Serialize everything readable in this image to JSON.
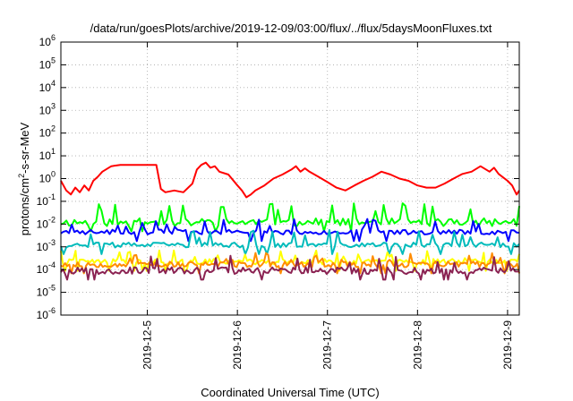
{
  "chart_data": {
    "type": "line",
    "title": "/data/run/goesPlots/archive/2019-12-09/03:00/flux/../flux/5daysMoonFluxes.txt",
    "xlabel": "Coordinated Universal Time (UTC)",
    "ylabel_main": "protons/cm",
    "ylabel_sup": "2",
    "ylabel_rest": "-s-sr-MeV",
    "y_scale": "log",
    "ylim_exp": [
      -6,
      6
    ],
    "xlim_days": [
      4.04,
      9.13
    ],
    "y_ticks": [
      {
        "exp": -6,
        "base": "10",
        "sup": "-6"
      },
      {
        "exp": -5,
        "base": "10",
        "sup": "-5"
      },
      {
        "exp": -4,
        "base": "10",
        "sup": "-4"
      },
      {
        "exp": -3,
        "base": "10",
        "sup": "-3"
      },
      {
        "exp": -2,
        "base": "10",
        "sup": "-2"
      },
      {
        "exp": -1,
        "base": "10",
        "sup": "-1"
      },
      {
        "exp": 0,
        "base": "10",
        "sup": "0"
      },
      {
        "exp": 1,
        "base": "10",
        "sup": "1"
      },
      {
        "exp": 2,
        "base": "10",
        "sup": "2"
      },
      {
        "exp": 3,
        "base": "10",
        "sup": "3"
      },
      {
        "exp": 4,
        "base": "10",
        "sup": "4"
      },
      {
        "exp": 5,
        "base": "10",
        "sup": "5"
      },
      {
        "exp": 6,
        "base": "10",
        "sup": "6"
      }
    ],
    "x_ticks": [
      {
        "day": 5,
        "label": "2019-12-5"
      },
      {
        "day": 6,
        "label": "2019-12-6"
      },
      {
        "day": 7,
        "label": "2019-12-7"
      },
      {
        "day": 8,
        "label": "2019-12-8"
      },
      {
        "day": 9,
        "label": "2019-12-9"
      }
    ],
    "grid": true,
    "series": [
      {
        "color": "#ff0000",
        "x": [
          4.04,
          4.1,
          4.15,
          4.2,
          4.25,
          4.3,
          4.35,
          4.4,
          4.45,
          4.5,
          4.6,
          4.7,
          4.8,
          4.9,
          5.0,
          5.05,
          5.1,
          5.15,
          5.2,
          5.3,
          5.4,
          5.5,
          5.55,
          5.6,
          5.65,
          5.7,
          5.75,
          5.8,
          5.9,
          6.0,
          6.05,
          6.1,
          6.15,
          6.2,
          6.3,
          6.4,
          6.5,
          6.6,
          6.65,
          6.7,
          6.75,
          6.8,
          6.9,
          7.0,
          7.1,
          7.2,
          7.3,
          7.4,
          7.5,
          7.6,
          7.7,
          7.8,
          7.9,
          8.0,
          8.1,
          8.2,
          8.3,
          8.4,
          8.5,
          8.6,
          8.7,
          8.8,
          8.85,
          8.9,
          9.0,
          9.05,
          9.1,
          9.13
        ],
        "y": [
          0.8,
          0.3,
          0.2,
          0.4,
          0.25,
          0.5,
          0.3,
          0.8,
          1.2,
          2.0,
          3.5,
          4.0,
          4.0,
          4.0,
          4.0,
          4.0,
          4.0,
          0.35,
          0.25,
          0.3,
          0.25,
          0.6,
          2.5,
          4.0,
          5.0,
          3.0,
          3.5,
          2.0,
          1.5,
          0.5,
          0.3,
          0.15,
          0.2,
          0.3,
          0.5,
          1.0,
          1.5,
          2.5,
          3.5,
          2.0,
          2.8,
          2.0,
          1.2,
          0.7,
          0.4,
          0.3,
          0.5,
          0.8,
          1.2,
          2.0,
          1.5,
          1.0,
          0.8,
          0.5,
          0.4,
          0.4,
          0.6,
          1.0,
          1.6,
          2.0,
          3.5,
          2.0,
          3.0,
          1.6,
          0.8,
          0.5,
          0.2,
          0.3
        ]
      },
      {
        "color": "#00ff00",
        "base": 0.012,
        "spread": 0.35,
        "spike": 0.06,
        "seed": 11,
        "n": 170
      },
      {
        "color": "#0000ff",
        "base": 0.0045,
        "spread": 0.22,
        "spike": 0.012,
        "seed": 23,
        "n": 170
      },
      {
        "color": "#00bbbb",
        "base": 0.0012,
        "spread": 0.22,
        "spike": 0.004,
        "seed": 37,
        "n": 170
      },
      {
        "color": "#ffff00",
        "base": 0.00022,
        "spread": 0.25,
        "spike": 0.0005,
        "seed": 41,
        "n": 220
      },
      {
        "color": "#ff8c00",
        "base": 0.00017,
        "spread": 0.25,
        "spike": 0.0004,
        "seed": 53,
        "n": 220
      },
      {
        "color": "#8b2252",
        "base": 9e-05,
        "spread": 0.3,
        "spike": 0.0003,
        "seed": 67,
        "n": 220
      }
    ]
  }
}
